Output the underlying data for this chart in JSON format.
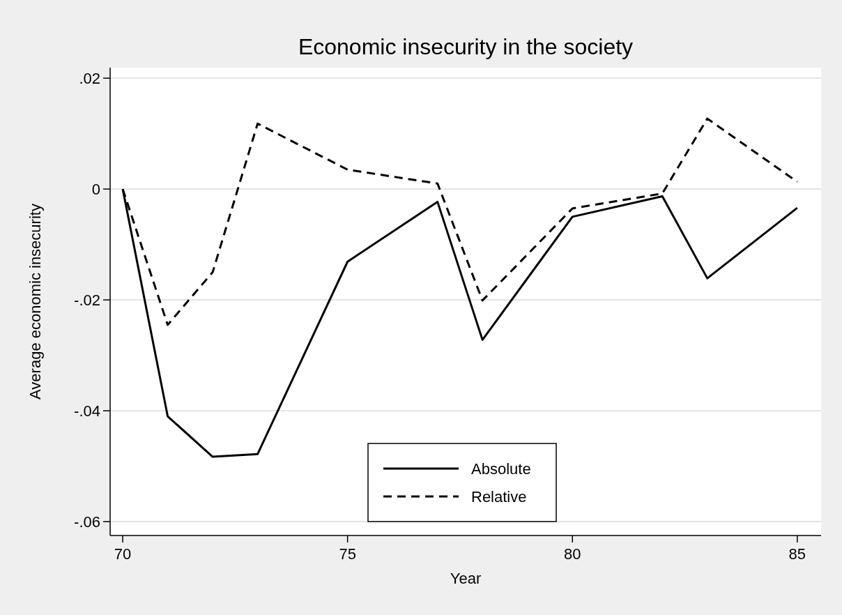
{
  "chart_data": {
    "type": "line",
    "title": "Economic insecurity in the society",
    "xlabel": "Year",
    "ylabel": "Average economic insecurity",
    "x": [
      70,
      71,
      72,
      73,
      75,
      77,
      78,
      80,
      82,
      83,
      85
    ],
    "series": [
      {
        "name": "Absolute",
        "color": "#000000",
        "line_style": "solid",
        "values": [
          0,
          -0.041,
          -0.0483,
          -0.0478,
          -0.0131,
          -0.0023,
          -0.0272,
          -0.005,
          -0.0013,
          -0.0161,
          -0.0034
        ]
      },
      {
        "name": "Relative",
        "color": "#000000",
        "line_style": "dashed",
        "values": [
          0,
          -0.0245,
          -0.015,
          0.0118,
          0.0035,
          0.001,
          -0.0201,
          -0.0035,
          -0.0008,
          0.0127,
          0.0013
        ]
      }
    ],
    "xlim": [
      69.72,
      85.53
    ],
    "xticks": [
      70,
      75,
      80,
      85
    ],
    "ylim": [
      -0.0625,
      0.0219
    ],
    "yticks": [
      {
        "value": 0.02,
        "label": ".02"
      },
      {
        "value": 0,
        "label": "0"
      },
      {
        "value": -0.02,
        "label": "-.02"
      },
      {
        "value": -0.04,
        "label": "-.04"
      },
      {
        "value": -0.06,
        "label": "-.06"
      }
    ],
    "grid": "y",
    "legend": "bottom",
    "marker": "none"
  }
}
